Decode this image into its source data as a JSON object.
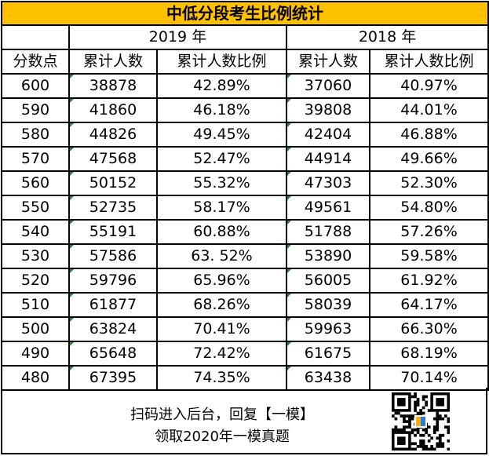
{
  "title": "中低分段考生比例统计",
  "years": [
    "2019 年",
    "2018 年"
  ],
  "headers": [
    "分数点",
    "累计人数",
    "累计人数比例",
    "累计人数",
    "累计人数比例"
  ],
  "rows": [
    {
      "score": "600",
      "c2019": "38878",
      "p2019": "42.89%",
      "c2018": "37060",
      "p2018": "40.97%"
    },
    {
      "score": "590",
      "c2019": "41860",
      "p2019": "46.18%",
      "c2018": "39808",
      "p2018": "44.01%"
    },
    {
      "score": "580",
      "c2019": "44826",
      "p2019": "49.45%",
      "c2018": "42404",
      "p2018": "46.88%"
    },
    {
      "score": "570",
      "c2019": "47568",
      "p2019": "52.47%",
      "c2018": "44914",
      "p2018": "49.66%"
    },
    {
      "score": "560",
      "c2019": "50152",
      "p2019": "55.32%",
      "c2018": "47303",
      "p2018": "52.30%"
    },
    {
      "score": "550",
      "c2019": "52735",
      "p2019": "58.17%",
      "c2018": "49561",
      "p2018": "54.80%"
    },
    {
      "score": "540",
      "c2019": "55191",
      "p2019": "60.88%",
      "c2018": "51788",
      "p2018": "57.26%"
    },
    {
      "score": "530",
      "c2019": "57586",
      "p2019": "63. 52%",
      "c2018": "53890",
      "p2018": "59.58%"
    },
    {
      "score": "520",
      "c2019": "59796",
      "p2019": "65.96%",
      "c2018": "56005",
      "p2018": "61.92%"
    },
    {
      "score": "510",
      "c2019": "61877",
      "p2019": "68.26%",
      "c2018": "58039",
      "p2018": "64.17%"
    },
    {
      "score": "500",
      "c2019": "63824",
      "p2019": "70.41%",
      "c2018": "59963",
      "p2018": "66.30%"
    },
    {
      "score": "490",
      "c2019": "65648",
      "p2019": "72.42%",
      "c2018": "61675",
      "p2018": "68.19%"
    },
    {
      "score": "480",
      "c2019": "67395",
      "p2019": "74.35%",
      "c2018": "63438",
      "p2018": "70.14%"
    }
  ],
  "footer": {
    "line1": "扫码进入后台，回复【一模】",
    "line2": "领取2020年一模真题",
    "qr_icon": "qr-code-icon"
  },
  "colors": {
    "title_bg": "#ffc000",
    "cell_marker": "#1e8c3a"
  }
}
